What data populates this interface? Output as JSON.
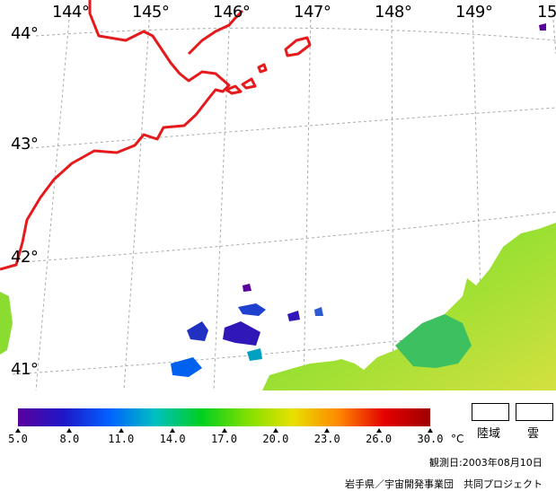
{
  "map": {
    "longitude_labels": [
      "144°",
      "145°",
      "146°",
      "147°",
      "148°",
      "149°",
      "15"
    ],
    "latitude_labels": [
      "44°",
      "43°",
      "42°",
      "41°"
    ],
    "colors": {
      "coastline": "#e41a1c",
      "graticule": "#aaaaaa"
    }
  },
  "legend": {
    "scale_labels": [
      "5.0",
      "8.0",
      "11.0",
      "14.0",
      "17.0",
      "20.0",
      "23.0",
      "26.0",
      "30.0"
    ],
    "unit": "°C",
    "land_label": "陸域",
    "cloud_label": "雲",
    "observation_date": "観測日:2003年08月10日",
    "credit": "岩手県／宇宙開発事業団　共同プロジェクト",
    "colorbar_stops": [
      "#5a009c",
      "#1f17c8",
      "#0062ff",
      "#00c0c0",
      "#00cf20",
      "#7ee000",
      "#e8e000",
      "#ff8800",
      "#e40000",
      "#a00000"
    ]
  }
}
